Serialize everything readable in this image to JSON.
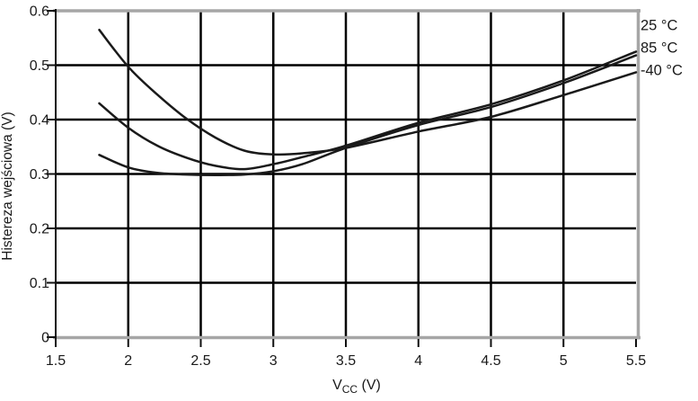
{
  "chart_data": {
    "type": "line",
    "title": "",
    "ylabel": "Histereza wejściowa (V)",
    "xlabel": "Vcc (V)",
    "xlabel_parts": {
      "main": "V",
      "sub": "CC",
      "suffix": " (V)"
    },
    "xlim": [
      1.5,
      5.5
    ],
    "ylim": [
      0,
      0.6
    ],
    "grid": true,
    "legend_position": "outside-right",
    "xticks": [
      1.5,
      2,
      2.5,
      3,
      3.5,
      4,
      4.5,
      5,
      5.5
    ],
    "xtick_labels": [
      "1.5",
      "2",
      "2.5",
      "3",
      "3.5",
      "4",
      "4.5",
      "5",
      "5.5"
    ],
    "yticks": [
      0,
      0.1,
      0.2,
      0.3,
      0.4,
      0.5,
      0.6
    ],
    "ytick_labels": [
      "0",
      "0.1",
      "0.2",
      "0.3",
      "0.4",
      "0.5",
      "0.6"
    ],
    "x": [
      1.8,
      2.0,
      2.2,
      2.4,
      2.6,
      2.8,
      3.0,
      3.2,
      3.5,
      4.0,
      4.5,
      5.0,
      5.5
    ],
    "series": [
      {
        "name": "25 °C",
        "values": [
          0.43,
          0.385,
          0.352,
          0.33,
          0.315,
          0.309,
          0.318,
          0.331,
          0.352,
          0.394,
          0.428,
          0.472,
          0.525
        ]
      },
      {
        "name": "85 °C",
        "values": [
          0.335,
          0.312,
          0.302,
          0.299,
          0.298,
          0.299,
          0.305,
          0.318,
          0.348,
          0.39,
          0.423,
          0.467,
          0.518
        ]
      },
      {
        "name": "-40 °C",
        "values": [
          0.565,
          0.497,
          0.446,
          0.402,
          0.367,
          0.343,
          0.336,
          0.338,
          0.348,
          0.378,
          0.405,
          0.445,
          0.487
        ]
      }
    ],
    "colors": {
      "curve": "#1a1a1a",
      "gridline": "#000000",
      "frame": "#a6a6a6",
      "axis": "#111111",
      "text": "#1a1a1a"
    }
  }
}
